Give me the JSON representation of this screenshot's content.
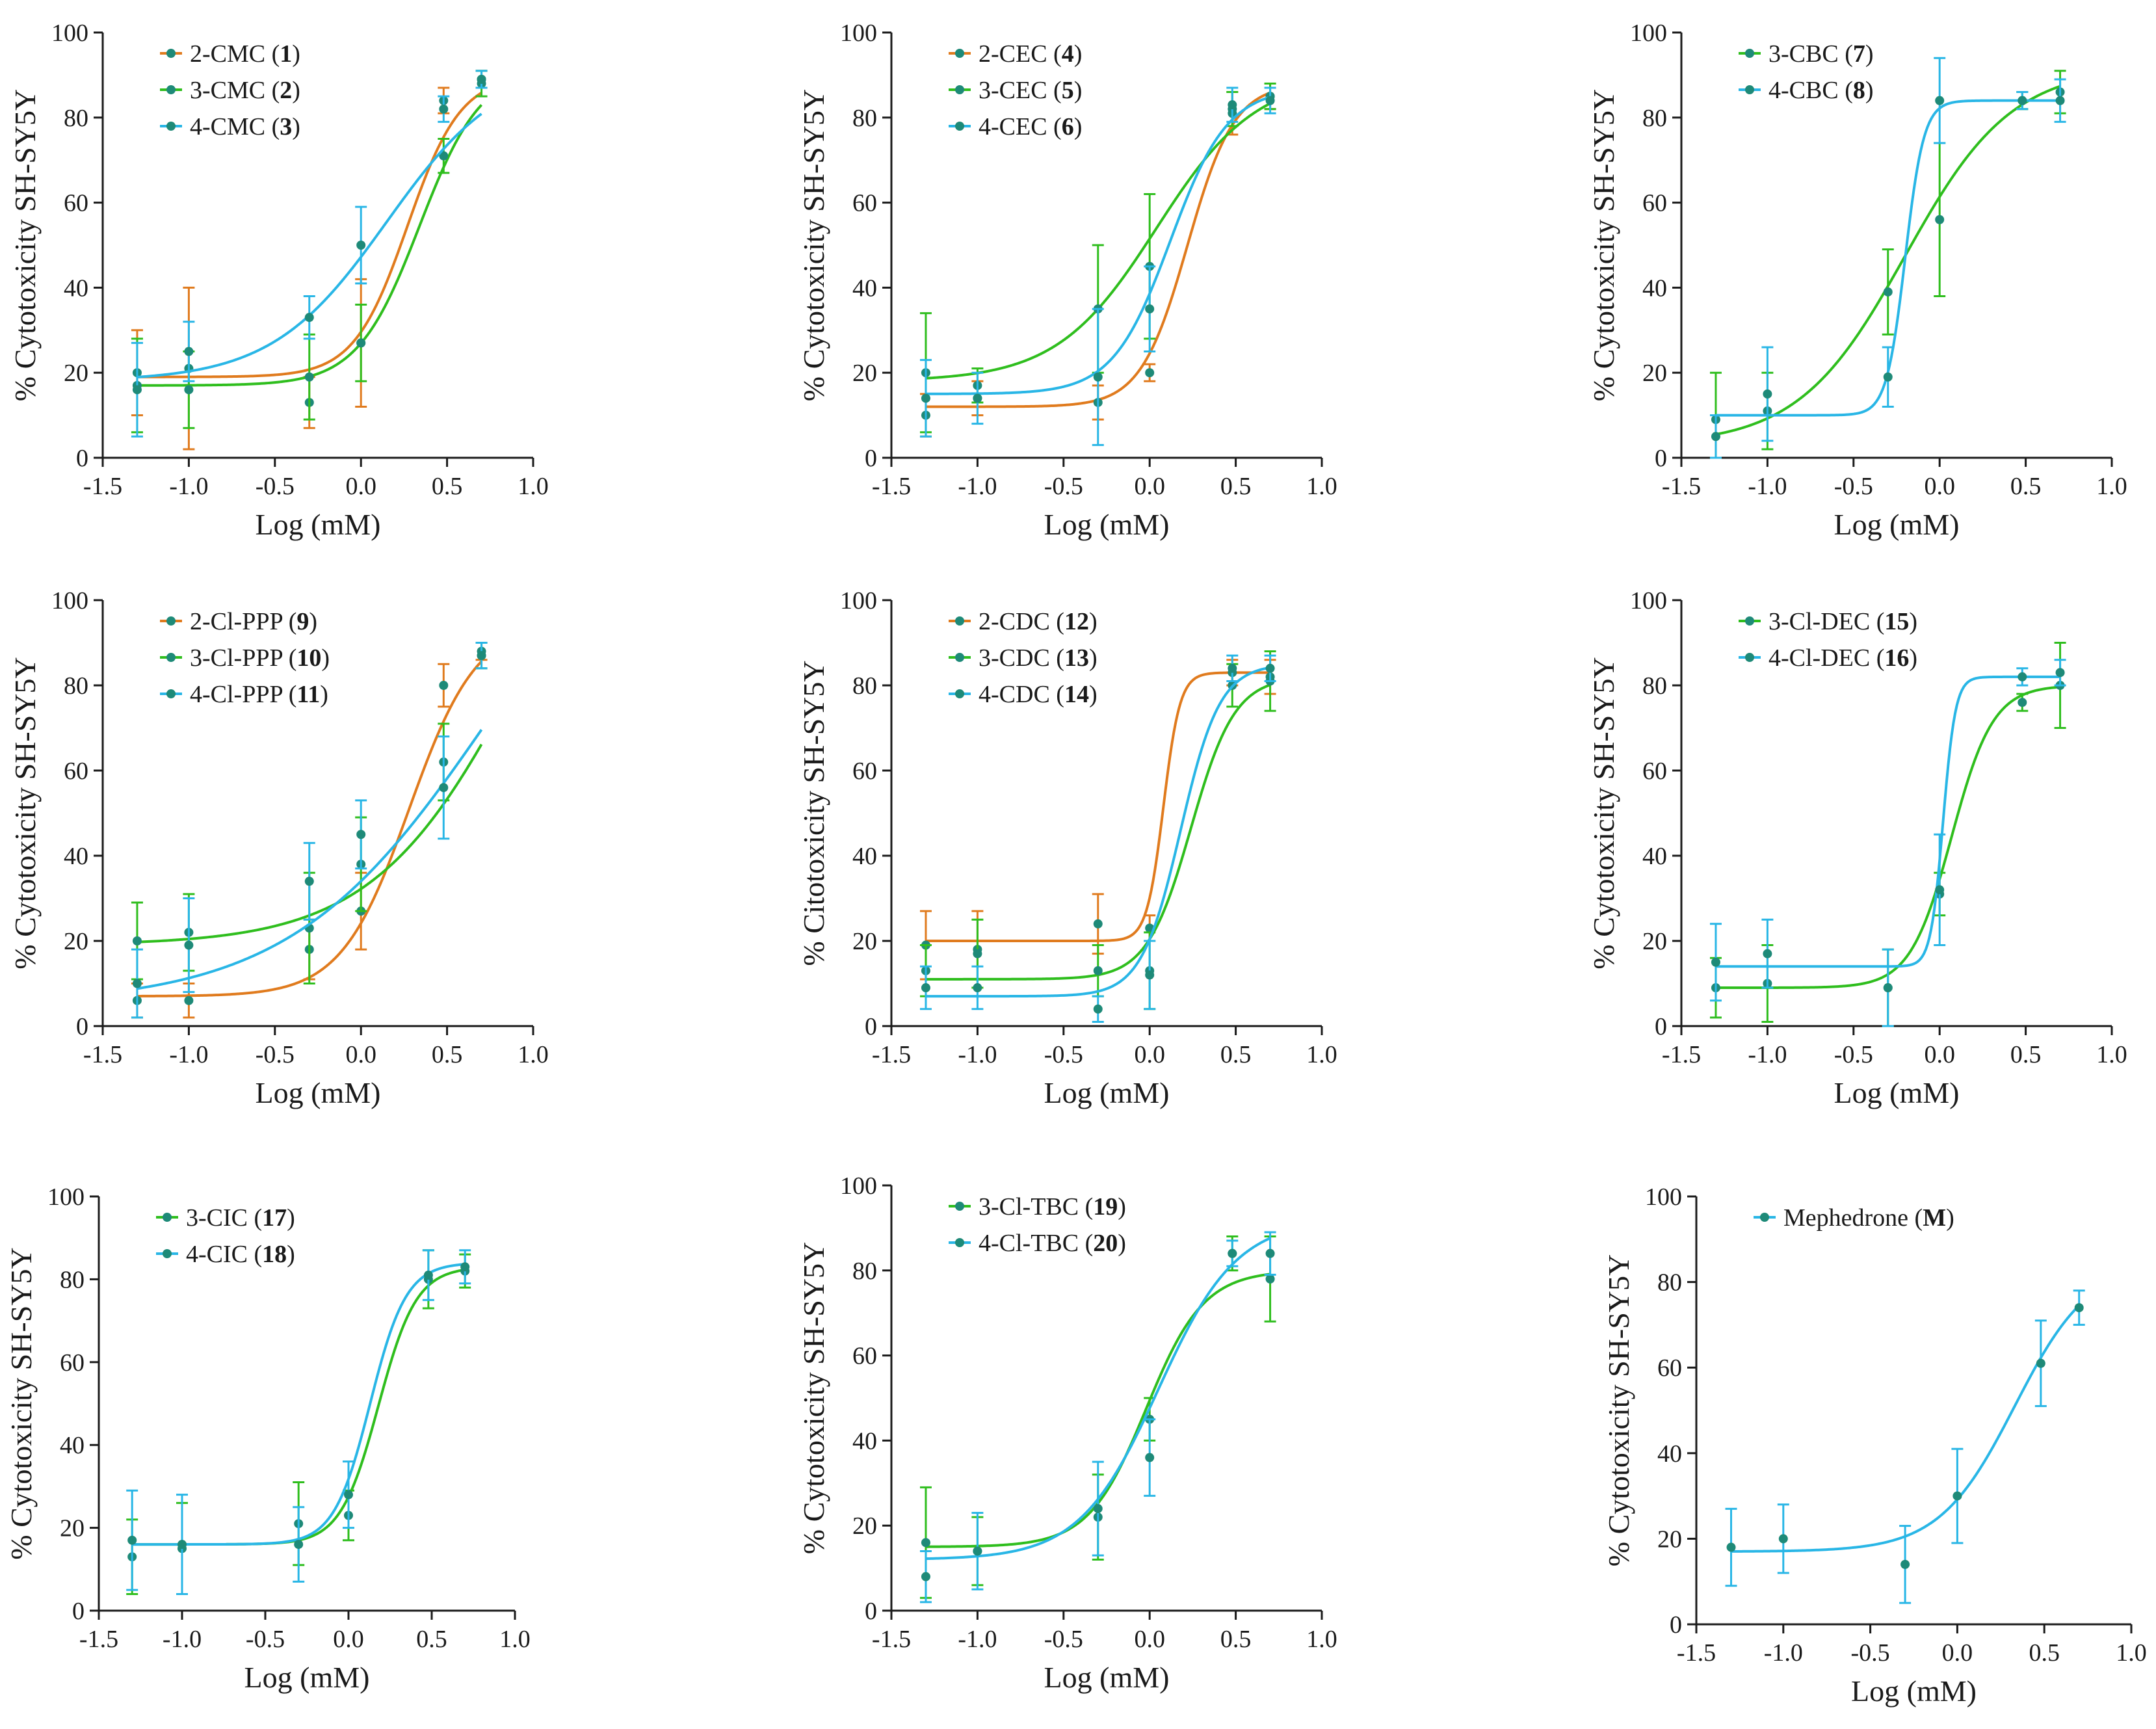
{
  "figure_title": "",
  "colors": {
    "orange": "#E07B1E",
    "green": "#2FBE1E",
    "cyan": "#29B6E6",
    "point": "#1E8A78",
    "axis": "#1a1a1a"
  },
  "chart_data": [
    {
      "type": "scatter",
      "xlabel": "Log (mM)",
      "ylabel": "% Cytotoxicity SH-SY5Y",
      "xlim": [
        -1.5,
        1.0
      ],
      "ylim": [
        0,
        100
      ],
      "xticks": [
        -1.5,
        -1.0,
        -0.5,
        0.0,
        0.5,
        1.0
      ],
      "xtick_labels": [
        "-1.5",
        "-1.0",
        "-0.5",
        "0.0",
        "0.5",
        "1.0"
      ],
      "yticks": [
        0,
        20,
        40,
        60,
        80,
        100
      ],
      "ytick_labels": [
        "0",
        "20",
        "40",
        "60",
        "80",
        "100"
      ],
      "x": [
        -1.3,
        -1.0,
        -0.3,
        0.0,
        0.48,
        0.7
      ],
      "series": [
        {
          "name": "2-CMC",
          "compound": "1",
          "color": "orange",
          "values": [
            20,
            21,
            13,
            27,
            84,
            89
          ],
          "errors": [
            10,
            19,
            6,
            15,
            3,
            2
          ],
          "curve": {
            "bottom": 19,
            "top": 90,
            "logec50": 0.27,
            "hill": 2.8
          }
        },
        {
          "name": "3-CMC",
          "compound": "2",
          "color": "green",
          "values": [
            17,
            16,
            19,
            27,
            71,
            88
          ],
          "errors": [
            11,
            9,
            10,
            9,
            4,
            3
          ],
          "curve": {
            "bottom": 17,
            "top": 92,
            "logec50": 0.34,
            "hill": 2.4
          }
        },
        {
          "name": "4-CMC",
          "compound": "3",
          "color": "cyan",
          "values": [
            16,
            25,
            33,
            50,
            82,
            89
          ],
          "errors": [
            11,
            7,
            5,
            9,
            3,
            2
          ],
          "curve": {
            "bottom": 18,
            "top": 93,
            "logec50": 0.15,
            "hill": 1.3
          }
        }
      ]
    },
    {
      "type": "scatter",
      "xlabel": "Log (mM)",
      "ylabel": "% Cytotoxicity SH-SY5Y",
      "xlim": [
        -1.5,
        1.0
      ],
      "ylim": [
        0,
        100
      ],
      "xticks": [
        -1.5,
        -1.0,
        -0.5,
        0.0,
        0.5,
        1.0
      ],
      "xtick_labels": [
        "-1.5",
        "-1.0",
        "-0.5",
        "0.0",
        "0.5",
        "1.0"
      ],
      "yticks": [
        0,
        20,
        40,
        60,
        80,
        100
      ],
      "ytick_labels": [
        "0",
        "20",
        "40",
        "60",
        "80",
        "100"
      ],
      "x": [
        -1.3,
        -1.0,
        -0.3,
        0.0,
        0.48,
        0.7
      ],
      "series": [
        {
          "name": "2-CEC",
          "compound": "4",
          "color": "orange",
          "values": [
            10,
            14,
            13,
            20,
            81,
            85
          ],
          "errors": [
            5,
            4,
            4,
            2,
            5,
            3
          ],
          "curve": {
            "bottom": 12,
            "top": 88,
            "logec50": 0.22,
            "hill": 3.2
          }
        },
        {
          "name": "3-CEC",
          "compound": "5",
          "color": "green",
          "values": [
            20,
            17,
            35,
            45,
            82,
            85
          ],
          "errors": [
            14,
            4,
            15,
            17,
            4,
            3
          ],
          "curve": {
            "bottom": 18,
            "top": 90,
            "logec50": 0.04,
            "hill": 1.5
          }
        },
        {
          "name": "4-CEC",
          "compound": "6",
          "color": "cyan",
          "values": [
            14,
            14,
            19,
            35,
            83,
            84
          ],
          "errors": [
            9,
            6,
            16,
            10,
            4,
            3
          ],
          "curve": {
            "bottom": 15,
            "top": 87,
            "logec50": 0.12,
            "hill": 2.6
          }
        }
      ]
    },
    {
      "type": "scatter",
      "xlabel": "Log (mM)",
      "ylabel": "% Cytotoxicity SH-SY5Y",
      "xlim": [
        -1.5,
        1.0
      ],
      "ylim": [
        0,
        100
      ],
      "xticks": [
        -1.5,
        -1.0,
        -0.5,
        0.0,
        0.5,
        1.0
      ],
      "xtick_labels": [
        "-1.5",
        "-1.0",
        "-0.5",
        "0.0",
        "0.5",
        "1.0"
      ],
      "yticks": [
        0,
        20,
        40,
        60,
        80,
        100
      ],
      "ytick_labels": [
        "0",
        "20",
        "40",
        "60",
        "80",
        "100"
      ],
      "x": [
        -1.3,
        -1.0,
        -0.3,
        0.0,
        0.48,
        0.7
      ],
      "series": [
        {
          "name": "3-CBC",
          "compound": "7",
          "color": "green",
          "values": [
            9,
            11,
            39,
            56,
            84,
            86
          ],
          "errors": [
            11,
            9,
            10,
            18,
            2,
            5
          ],
          "curve": {
            "bottom": 3,
            "top": 92,
            "logec50": -0.2,
            "hill": 1.4
          }
        },
        {
          "name": "4-CBC",
          "compound": "8",
          "color": "cyan",
          "values": [
            5,
            15,
            19,
            84,
            84,
            84
          ],
          "errors": [
            5,
            11,
            7,
            10,
            2,
            5
          ],
          "curve": {
            "bottom": 10,
            "top": 84,
            "logec50": -0.2,
            "hill": 8.0
          }
        }
      ]
    },
    {
      "type": "scatter",
      "xlabel": "Log (mM)",
      "ylabel": "% Cytotoxicity SH-SY5Y",
      "xlim": [
        -1.5,
        1.0
      ],
      "ylim": [
        0,
        100
      ],
      "xticks": [
        -1.5,
        -1.0,
        -0.5,
        0.0,
        0.5,
        1.0
      ],
      "xtick_labels": [
        "-1.5",
        "-1.0",
        "-0.5",
        "0.0",
        "0.5",
        "1.0"
      ],
      "yticks": [
        0,
        20,
        40,
        60,
        80,
        100
      ],
      "ytick_labels": [
        "0",
        "20",
        "40",
        "60",
        "80",
        "100"
      ],
      "x": [
        -1.3,
        -1.0,
        -0.3,
        0.0,
        0.48,
        0.7
      ],
      "series": [
        {
          "name": "2-Cl-PPP",
          "compound": "9",
          "color": "orange",
          "values": [
            6,
            6,
            18,
            27,
            80,
            88
          ],
          "errors": [
            4,
            4,
            7,
            9,
            5,
            2
          ],
          "curve": {
            "bottom": 7,
            "top": 95,
            "logec50": 0.28,
            "hill": 2.2
          }
        },
        {
          "name": "3-Cl-PPP",
          "compound": "10",
          "color": "green",
          "values": [
            20,
            22,
            23,
            38,
            62,
            87
          ],
          "errors": [
            9,
            9,
            13,
            11,
            9,
            3
          ],
          "curve": {
            "bottom": 19,
            "top": 150,
            "logec50": 0.95,
            "hill": 1.0
          }
        },
        {
          "name": "4-Cl-PPP",
          "compound": "11",
          "color": "cyan",
          "values": [
            10,
            19,
            34,
            45,
            56,
            87
          ],
          "errors": [
            8,
            11,
            9,
            8,
            12,
            3
          ],
          "curve": {
            "bottom": 5,
            "top": 140,
            "logec50": 0.75,
            "hill": 0.75
          }
        }
      ]
    },
    {
      "type": "scatter",
      "xlabel": "Log (mM)",
      "ylabel": "% Citotoxicity SH-SY5Y",
      "xlim": [
        -1.5,
        1.0
      ],
      "ylim": [
        0,
        100
      ],
      "xticks": [
        -1.5,
        -1.0,
        -0.5,
        0.0,
        0.5,
        1.0
      ],
      "xtick_labels": [
        "-1.5",
        "-1.0",
        "-0.5",
        "0.0",
        "0.5",
        "1.0"
      ],
      "yticks": [
        0,
        20,
        40,
        60,
        80,
        100
      ],
      "ytick_labels": [
        "0",
        "20",
        "40",
        "60",
        "80",
        "100"
      ],
      "x": [
        -1.3,
        -1.0,
        -0.3,
        0.0,
        0.48,
        0.7
      ],
      "series": [
        {
          "name": "2-CDC",
          "compound": "12",
          "color": "orange",
          "values": [
            19,
            18,
            24,
            23,
            83,
            82
          ],
          "errors": [
            8,
            9,
            7,
            3,
            3,
            4
          ],
          "curve": {
            "bottom": 20,
            "top": 83,
            "logec50": 0.08,
            "hill": 9.0
          }
        },
        {
          "name": "3-CDC",
          "compound": "13",
          "color": "green",
          "values": [
            13,
            17,
            13,
            13,
            80,
            81
          ],
          "errors": [
            6,
            8,
            6,
            9,
            5,
            7
          ],
          "curve": {
            "bottom": 11,
            "top": 82,
            "logec50": 0.24,
            "hill": 3.4
          }
        },
        {
          "name": "4-CDC",
          "compound": "14",
          "color": "cyan",
          "values": [
            9,
            9,
            4,
            12,
            84,
            84
          ],
          "errors": [
            5,
            5,
            3,
            8,
            3,
            3
          ],
          "curve": {
            "bottom": 7,
            "top": 85,
            "logec50": 0.18,
            "hill": 3.8
          }
        }
      ]
    },
    {
      "type": "scatter",
      "xlabel": "Log (mM)",
      "ylabel": "% Cytotoxicity SH-SY5Y",
      "xlim": [
        -1.5,
        1.0
      ],
      "ylim": [
        0,
        100
      ],
      "xticks": [
        -1.5,
        -1.0,
        -0.5,
        0.0,
        0.5,
        1.0
      ],
      "xtick_labels": [
        "-1.5",
        "-1.0",
        "-0.5",
        "0.0",
        "0.5",
        "1.0"
      ],
      "yticks": [
        0,
        20,
        40,
        60,
        80,
        100
      ],
      "ytick_labels": [
        "0",
        "20",
        "40",
        "60",
        "80",
        "100"
      ],
      "x": [
        -1.3,
        -1.0,
        -0.3,
        0.0,
        0.48,
        0.7
      ],
      "series": [
        {
          "name": "3-Cl-DEC",
          "compound": "15",
          "color": "green",
          "values": [
            9,
            10,
            9,
            31,
            76,
            80
          ],
          "errors": [
            7,
            9,
            9,
            5,
            2,
            10
          ],
          "curve": {
            "bottom": 9,
            "top": 80,
            "logec50": 0.07,
            "hill": 3.6
          }
        },
        {
          "name": "4-Cl-DEC",
          "compound": "16",
          "color": "cyan",
          "values": [
            15,
            17,
            9,
            32,
            82,
            83
          ],
          "errors": [
            9,
            8,
            9,
            13,
            2,
            3
          ],
          "curve": {
            "bottom": 14,
            "top": 82,
            "logec50": 0.02,
            "hill": 12.0
          }
        }
      ]
    },
    {
      "type": "scatter",
      "xlabel": "Log (mM)",
      "ylabel": "% Cytotoxicity SH-SY5Y",
      "xlim": [
        -1.5,
        1.0
      ],
      "ylim": [
        0,
        100
      ],
      "xticks": [
        -1.5,
        -1.0,
        -0.5,
        0.0,
        0.5,
        1.0
      ],
      "xtick_labels": [
        "-1.5",
        "-1.0",
        "-0.5",
        "0.0",
        "0.5",
        "1.0"
      ],
      "yticks": [
        0,
        20,
        40,
        60,
        80,
        100
      ],
      "ytick_labels": [
        "0",
        "20",
        "40",
        "60",
        "80",
        "100"
      ],
      "x": [
        -1.3,
        -1.0,
        -0.3,
        0.0,
        0.48,
        0.7
      ],
      "series": [
        {
          "name": "3-CIC",
          "compound": "17",
          "color": "green",
          "values": [
            13,
            15,
            21,
            23,
            80,
            82
          ],
          "errors": [
            9,
            11,
            10,
            6,
            7,
            4
          ],
          "curve": {
            "bottom": 16,
            "top": 83,
            "logec50": 0.18,
            "hill": 3.8
          }
        },
        {
          "name": "4-CIC",
          "compound": "18",
          "color": "cyan",
          "values": [
            17,
            16,
            16,
            28,
            81,
            83
          ],
          "errors": [
            12,
            12,
            9,
            8,
            6,
            4
          ],
          "curve": {
            "bottom": 16,
            "top": 84,
            "logec50": 0.13,
            "hill": 4.0
          }
        }
      ]
    },
    {
      "type": "scatter",
      "xlabel": "Log (mM)",
      "ylabel": "% Cytotoxicity SH-SY5Y",
      "xlim": [
        -1.5,
        1.0
      ],
      "ylim": [
        0,
        100
      ],
      "xticks": [
        -1.5,
        -1.0,
        -0.5,
        0.0,
        0.5,
        1.0
      ],
      "xtick_labels": [
        "-1.5",
        "-1.0",
        "-0.5",
        "0.0",
        "0.5",
        "1.0"
      ],
      "yticks": [
        0,
        20,
        40,
        60,
        80,
        100
      ],
      "ytick_labels": [
        "0",
        "20",
        "40",
        "60",
        "80",
        "100"
      ],
      "x": [
        -1.3,
        -1.0,
        -0.3,
        0.0,
        0.48,
        0.7
      ],
      "series": [
        {
          "name": "3-Cl-TBC",
          "compound": "19",
          "color": "green",
          "values": [
            16,
            14,
            22,
            45,
            84,
            78
          ],
          "errors": [
            13,
            8,
            10,
            5,
            4,
            10
          ],
          "curve": {
            "bottom": 15,
            "top": 80,
            "logec50": -0.02,
            "hill": 2.6
          }
        },
        {
          "name": "4-Cl-TBC",
          "compound": "20",
          "color": "cyan",
          "values": [
            8,
            14,
            24,
            36,
            84,
            84
          ],
          "errors": [
            6,
            9,
            11,
            9,
            3,
            5
          ],
          "curve": {
            "bottom": 12,
            "top": 92,
            "logec50": 0.05,
            "hill": 1.9
          }
        }
      ]
    },
    {
      "type": "scatter",
      "xlabel": "Log (mM)",
      "ylabel": "% Cytotoxicity SH-SY5Y",
      "xlim": [
        -1.5,
        1.0
      ],
      "ylim": [
        0,
        100
      ],
      "xticks": [
        -1.5,
        -1.0,
        -0.5,
        0.0,
        0.5,
        1.0
      ],
      "xtick_labels": [
        "-1.5",
        "-1.0",
        "-0.5",
        "0.0",
        "0.5",
        "1.0"
      ],
      "yticks": [
        0,
        20,
        40,
        60,
        80,
        100
      ],
      "ytick_labels": [
        "0",
        "20",
        "40",
        "60",
        "80",
        "100"
      ],
      "x": [
        -1.3,
        -1.0,
        -0.3,
        0.0,
        0.48,
        0.7
      ],
      "series": [
        {
          "name": "Mephedrone",
          "compound": "M",
          "color": "cyan",
          "values": [
            18,
            20,
            14,
            30,
            61,
            74
          ],
          "errors": [
            9,
            8,
            9,
            11,
            10,
            4
          ],
          "curve": {
            "bottom": 17,
            "top": 85,
            "logec50": 0.33,
            "hill": 2.0
          }
        }
      ]
    }
  ]
}
